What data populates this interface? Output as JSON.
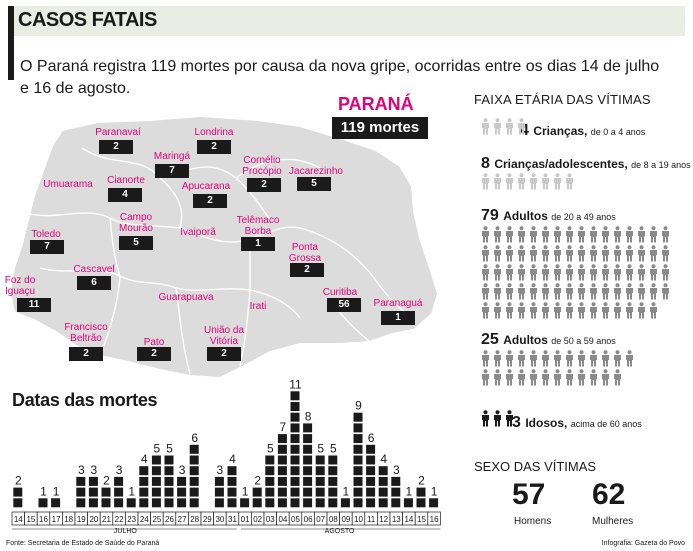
{
  "header": {
    "title": "CASOS FATAIS"
  },
  "intro": "O Paraná registra 119 mortes por causa da nova gripe, ocorridas entre os dias 14 de julho e 16 de agosto.",
  "state": {
    "name": "PARANÁ",
    "total": "119 mortes"
  },
  "colors": {
    "accent": "#e0007a",
    "dark": "#1a1a1a",
    "map_fill": "#dcdcdc",
    "icon_light": "#c9c9c9",
    "icon_mid": "#8a8a8a"
  },
  "cities": [
    {
      "name": "Paranavaí",
      "count": "2"
    },
    {
      "name": "Londrina",
      "count": "2"
    },
    {
      "name": "Maringá",
      "count": "7"
    },
    {
      "name": "Cornélio Procópio",
      "count": "2"
    },
    {
      "name": "Jacarezinho",
      "count": "5"
    },
    {
      "name": "Umuarama",
      "count": ""
    },
    {
      "name": "Cianorte",
      "count": "4"
    },
    {
      "name": "Apucarana",
      "count": "2"
    },
    {
      "name": "Campo Mourão",
      "count": "5"
    },
    {
      "name": "Telêmaco Borba",
      "count": "1"
    },
    {
      "name": "Toledo",
      "count": "7"
    },
    {
      "name": "Ivaiporã",
      "count": ""
    },
    {
      "name": "Ponta Grossa",
      "count": "2"
    },
    {
      "name": "Cascavel",
      "count": "6"
    },
    {
      "name": "Foz do Iguaçu",
      "count": "11"
    },
    {
      "name": "Guarapuava",
      "count": ""
    },
    {
      "name": "Curitiba",
      "count": "56"
    },
    {
      "name": "Paranaguá",
      "count": "1"
    },
    {
      "name": "Irati",
      "count": ""
    },
    {
      "name": "Francisco Beltrão",
      "count": "2"
    },
    {
      "name": "Pato Branco",
      "count": "2"
    },
    {
      "name": "União da Vitória",
      "count": "2"
    }
  ],
  "chart_data": {
    "type": "bar",
    "title": "Datas das mortes",
    "months": [
      "JULHO",
      "AGOSTO"
    ],
    "categories": [
      "14",
      "15",
      "16",
      "17",
      "18",
      "19",
      "20",
      "21",
      "22",
      "23",
      "24",
      "25",
      "26",
      "27",
      "28",
      "29",
      "30",
      "31",
      "01",
      "02",
      "03",
      "04",
      "05",
      "06",
      "07",
      "08",
      "09",
      "10",
      "11",
      "12",
      "13",
      "14",
      "15",
      "16"
    ],
    "values": [
      2,
      0,
      1,
      1,
      0,
      3,
      3,
      2,
      3,
      1,
      4,
      5,
      5,
      3,
      6,
      0,
      3,
      4,
      1,
      2,
      5,
      7,
      11,
      8,
      5,
      5,
      1,
      9,
      6,
      4,
      3,
      1,
      2,
      1
    ],
    "ylim": [
      0,
      11
    ]
  },
  "age_panel": {
    "title": "FAIXA ETÁRIA DAS VÍTIMAS",
    "groups": [
      {
        "count": "4",
        "label": "Crianças,",
        "range": "de 0 a 4 anos",
        "n": 4
      },
      {
        "count": "8",
        "label": "Crianças/adolescentes,",
        "range": "de 8 a 19 anos",
        "n": 8
      },
      {
        "count": "79",
        "label": "Adultos",
        "range": "de 20 a 49 anos",
        "n": 79
      },
      {
        "count": "25",
        "label": "Adultos",
        "range": "de 50 a 59 anos",
        "n": 25
      },
      {
        "count": "3",
        "label": "Idosos,",
        "range": "acima de 60 anos",
        "n": 3
      }
    ]
  },
  "sex_panel": {
    "title": "SEXO DAS VÍTIMAS",
    "men_count": "57",
    "men_label": "Homens",
    "women_count": "62",
    "women_label": "Mulheres"
  },
  "footer": {
    "source": "Fonte: Secretaria de Estado de Saúde do Paraná",
    "credit": "Infografia: Gazeta do Povo"
  }
}
